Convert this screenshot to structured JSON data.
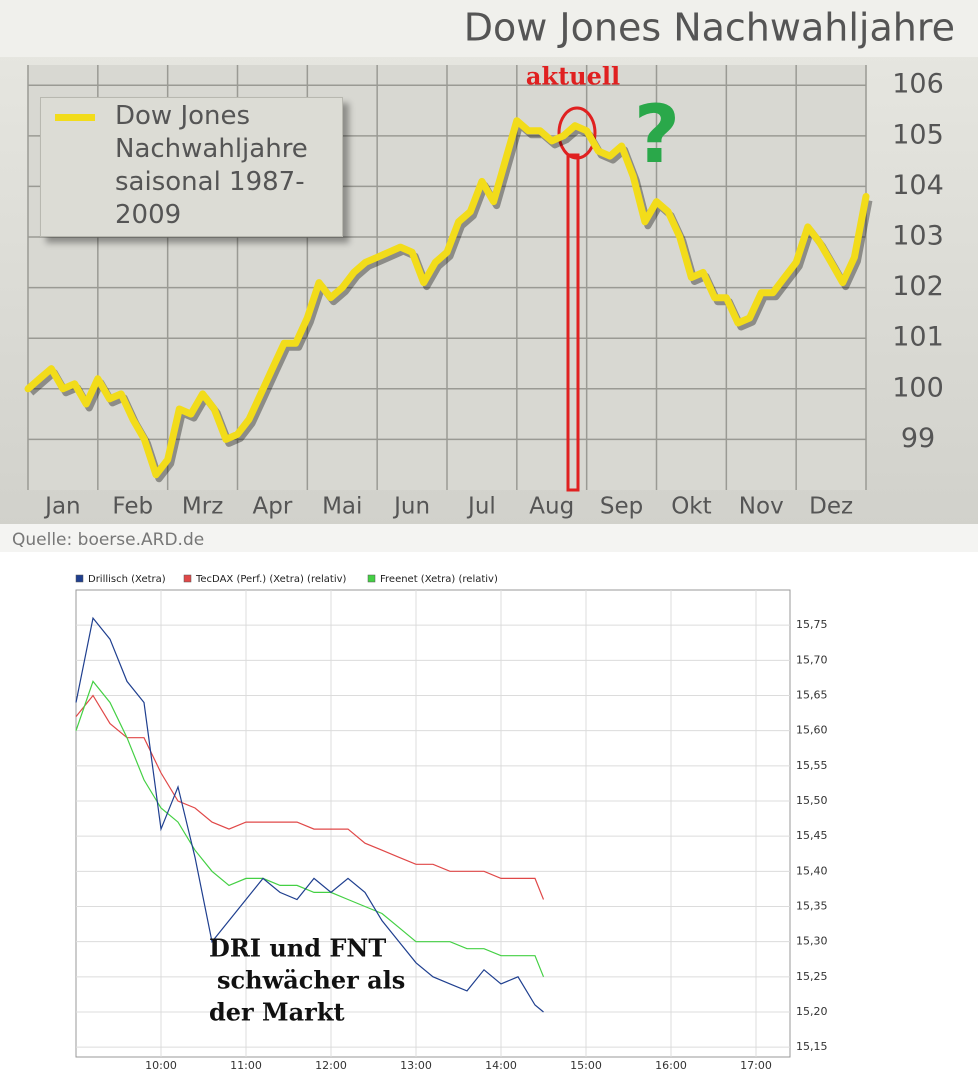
{
  "chart_data": [
    {
      "type": "line",
      "title": "Dow Jones Nachwahljahre",
      "source": "Quelle: boerse.ARD.de",
      "annotations": [
        "aktuell",
        "?"
      ],
      "categories": [
        null,
        null,
        null,
        "Jan",
        null,
        null,
        null,
        null,
        null,
        "Feb",
        null,
        null,
        null,
        null,
        null,
        "Mrz",
        null,
        null,
        null,
        null,
        null,
        "Apr",
        null,
        null,
        null,
        null,
        null,
        "Mai",
        null,
        null,
        null,
        null,
        null,
        "Jun",
        null,
        null,
        null,
        null,
        null,
        "Jul",
        null,
        null,
        null,
        null,
        null,
        "Aug",
        null,
        null,
        null,
        null,
        null,
        "Sep",
        null,
        null,
        null,
        null,
        null,
        "Okt",
        null,
        null,
        null,
        null,
        null,
        "Nov",
        null,
        null,
        null,
        null,
        null,
        "Dez",
        null,
        null,
        null
      ],
      "series": [
        {
          "name": "Dow Jones Nachwahljahre saisonal 1987-2009",
          "color": "#f2dc1a",
          "values": [
            100.0,
            100.2,
            100.4,
            100.0,
            100.1,
            99.7,
            100.2,
            99.8,
            99.9,
            99.4,
            99.0,
            98.3,
            98.6,
            99.6,
            99.5,
            99.9,
            99.6,
            99.0,
            99.1,
            99.4,
            99.9,
            100.4,
            100.9,
            100.9,
            101.4,
            102.1,
            101.8,
            102.0,
            102.3,
            102.5,
            102.6,
            102.7,
            102.8,
            102.7,
            102.1,
            102.5,
            102.7,
            103.3,
            103.5,
            104.1,
            103.7,
            104.5,
            105.3,
            105.1,
            105.1,
            104.9,
            105.0,
            105.2,
            105.1,
            104.7,
            104.6,
            104.8,
            104.2,
            103.3,
            103.7,
            103.5,
            103.0,
            102.2,
            102.3,
            101.8,
            101.8,
            101.3,
            101.4,
            101.9,
            101.9,
            102.2,
            102.5,
            103.2,
            102.9,
            102.5,
            102.1,
            102.6,
            103.8
          ]
        }
      ],
      "ylim": [
        98,
        106.4
      ],
      "yticks": [
        99,
        100,
        101,
        102,
        103,
        104,
        105,
        106
      ],
      "grid": true
    },
    {
      "type": "line",
      "annotation": [
        "DRI und FNT",
        "schwächer als",
        "der Markt"
      ],
      "x": [
        9.0,
        9.2,
        9.4,
        9.6,
        9.8,
        10.0,
        10.2,
        10.4,
        10.6,
        10.8,
        11.0,
        11.2,
        11.4,
        11.6,
        11.8,
        12.0,
        12.2,
        12.4,
        12.6,
        12.8,
        13.0,
        13.2,
        13.4,
        13.6,
        13.8,
        14.0,
        14.2,
        14.4,
        14.5
      ],
      "series": [
        {
          "name": "Drillisch (Xetra)",
          "color": "#1f3f8f",
          "values": [
            15.64,
            15.76,
            15.73,
            15.67,
            15.64,
            15.46,
            15.52,
            15.42,
            15.3,
            15.33,
            15.36,
            15.39,
            15.37,
            15.36,
            15.39,
            15.37,
            15.39,
            15.37,
            15.33,
            15.3,
            15.27,
            15.25,
            15.24,
            15.23,
            15.26,
            15.24,
            15.25,
            15.21,
            15.2
          ]
        },
        {
          "name": "TecDAX (Perf.) (Xetra) (relativ)",
          "color": "#e04848",
          "values": [
            15.62,
            15.65,
            15.61,
            15.59,
            15.59,
            15.54,
            15.5,
            15.49,
            15.47,
            15.46,
            15.47,
            15.47,
            15.47,
            15.47,
            15.46,
            15.46,
            15.46,
            15.44,
            15.43,
            15.42,
            15.41,
            15.41,
            15.4,
            15.4,
            15.4,
            15.39,
            15.39,
            15.39,
            15.36
          ]
        },
        {
          "name": "Freenet (Xetra) (relativ)",
          "color": "#44d044",
          "values": [
            15.6,
            15.67,
            15.64,
            15.59,
            15.53,
            15.49,
            15.47,
            15.43,
            15.4,
            15.38,
            15.39,
            15.39,
            15.38,
            15.38,
            15.37,
            15.37,
            15.36,
            15.35,
            15.34,
            15.32,
            15.3,
            15.3,
            15.3,
            15.29,
            15.29,
            15.28,
            15.28,
            15.28,
            15.25
          ]
        }
      ],
      "xlim": [
        9,
        17.4
      ],
      "xticks": [
        {
          "value": 10,
          "label": "10:00"
        },
        {
          "value": 11,
          "label": "11:00"
        },
        {
          "value": 12,
          "label": "12:00"
        },
        {
          "value": 13,
          "label": "13:00"
        },
        {
          "value": 14,
          "label": "14:00"
        },
        {
          "value": 15,
          "label": "15:00"
        },
        {
          "value": 16,
          "label": "16:00"
        },
        {
          "value": 17,
          "label": "17:00"
        }
      ],
      "ylim": [
        15.136,
        15.8
      ],
      "yticks": [
        {
          "value": 15.15,
          "label": "15,15"
        },
        {
          "value": 15.2,
          "label": "15,20"
        },
        {
          "value": 15.25,
          "label": "15,25"
        },
        {
          "value": 15.3,
          "label": "15,30"
        },
        {
          "value": 15.35,
          "label": "15,35"
        },
        {
          "value": 15.4,
          "label": "15,40"
        },
        {
          "value": 15.45,
          "label": "15,45"
        },
        {
          "value": 15.5,
          "label": "15,50"
        },
        {
          "value": 15.55,
          "label": "15,55"
        },
        {
          "value": 15.6,
          "label": "15,60"
        },
        {
          "value": 15.65,
          "label": "15,65"
        },
        {
          "value": 15.7,
          "label": "15,70"
        },
        {
          "value": 15.75,
          "label": "15,75"
        }
      ],
      "grid": true
    }
  ]
}
